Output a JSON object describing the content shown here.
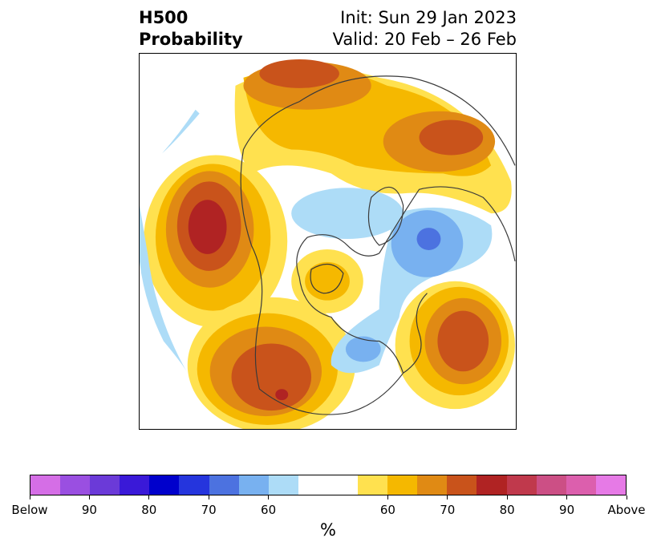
{
  "header": {
    "title_line1": "H500",
    "title_line2": "Probability",
    "init_text": "Init: Sun 29 Jan 2023",
    "valid_text": "Valid: 20 Feb – 26 Feb"
  },
  "map": {
    "projection": "north-polar-stereographic",
    "variable": "H500 probability",
    "fill_colors": {
      "above_55": "#ffe14f",
      "above_60": "#f5b800",
      "above_65": "#e08a14",
      "above_70": "#c9531b",
      "above_75": "#b02323",
      "below_55": "#addcf7",
      "below_60": "#78b1f0",
      "below_65": "#4c72e0",
      "land_lines": "#3a3a3a"
    }
  },
  "colorbar": {
    "unit_label": "%",
    "colors": [
      "#d56ee6",
      "#9a4fe1",
      "#6b3ad8",
      "#3a19d8",
      "#0000cc",
      "#2535dd",
      "#4c72e0",
      "#78b1f0",
      "#addcf7",
      "#ffffff",
      "#ffffff",
      "#ffe14f",
      "#f5b800",
      "#e08a14",
      "#c9531b",
      "#b02323",
      "#c0394c",
      "#cc4f85",
      "#dc5fad",
      "#e67ae6"
    ],
    "tick_labels": [
      "Below",
      "90",
      "80",
      "70",
      "60",
      "60",
      "70",
      "80",
      "90",
      "Above"
    ]
  }
}
